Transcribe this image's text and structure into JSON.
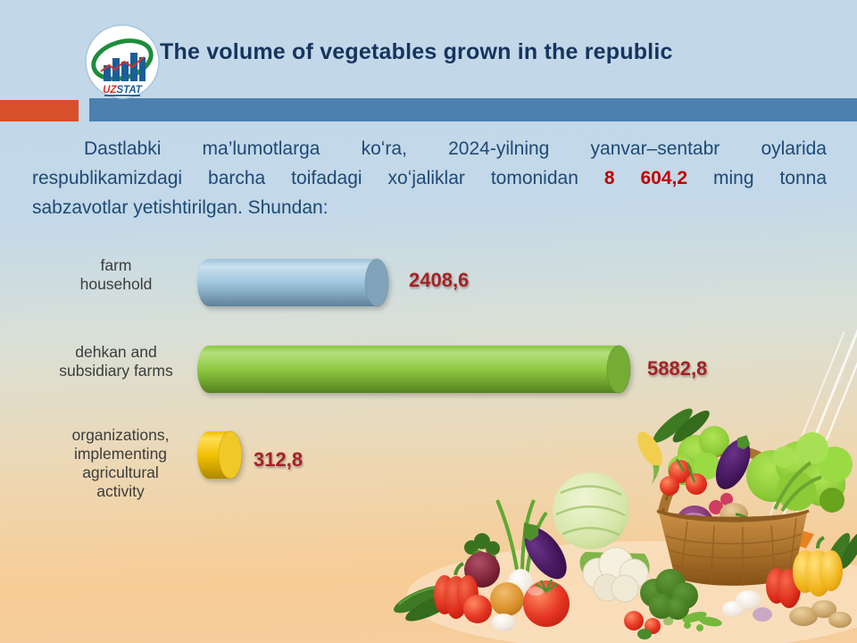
{
  "header": {
    "logo": {
      "uz": "UZ",
      "stat": "STAT"
    },
    "title": "The volume of vegetables grown in the republic"
  },
  "intro": {
    "line1": "Dastlabki ma’lumotlarga koʻra, 2024-yilning yanvar–sentabr oylarida",
    "line2_before": "respublikamizdagi barcha toifadagi xoʻjaliklar tomonidan",
    "line2_highlight": "8 604,2",
    "line2_after": "ming tonna",
    "line3": "sabzavotlar yetishtirilgan. Shundan:"
  },
  "chart_data": {
    "type": "bar",
    "orientation": "horizontal",
    "bar_style": "3d-cylinder",
    "title": "The volume of vegetables grown in the republic",
    "categories": [
      "farm household",
      "dehkan and subsidiary farms",
      "organizations, implementing agricultural activity"
    ],
    "category_labels": [
      "farm\nhousehold",
      "dehkan and\nsubsidiary farms",
      "organizations,\nimplementing\nagricultural\nactivity"
    ],
    "values": [
      2408.6,
      5882.8,
      312.8
    ],
    "value_labels": [
      "2408,6",
      "5882,8",
      "312,8"
    ],
    "total_value": "8 604,2",
    "unit": "ming tonna",
    "xlim": [
      0,
      5882.8
    ],
    "grid": false,
    "legend": "none",
    "bar_colors": [
      {
        "light": "#C9E0EE",
        "mid": "#9DC4DB",
        "dark": "#5F8299",
        "cap": "#7FA4BA"
      },
      {
        "light": "#B4E07E",
        "mid": "#8CC63F",
        "dark": "#55821F",
        "cap": "#74AC35"
      },
      {
        "light": "#FFDE55",
        "mid": "#EFBF00",
        "dark": "#B08800",
        "cap": "#F2C829"
      }
    ],
    "value_color": "#A62123",
    "label_color": "#3C3C3C"
  },
  "colors": {
    "title_text": "#16345E",
    "body_text": "#1E4976",
    "highlight_red": "#C00000",
    "band_orange": "#D8502A",
    "band_blue": "#4B80AF",
    "background_top": "#C2D8E9",
    "background_bottom": "#F7CC95"
  }
}
